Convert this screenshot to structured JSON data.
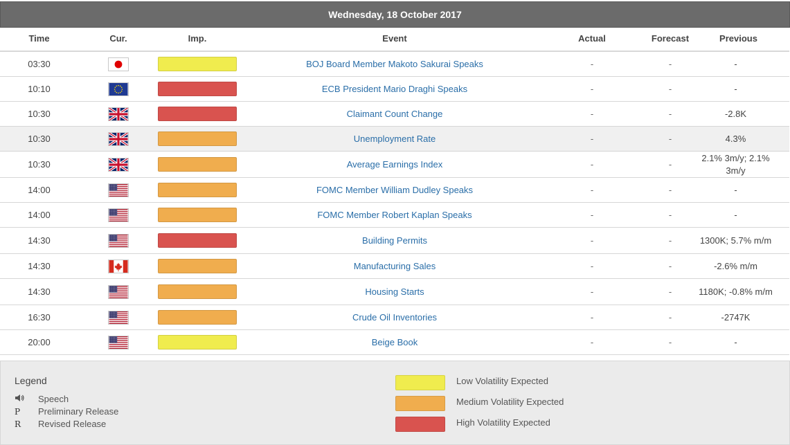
{
  "date": "Wednesday, 18 October 2017",
  "columns": {
    "time": "Time",
    "currency": "Cur.",
    "importance": "Imp.",
    "event": "Event",
    "actual": "Actual",
    "forecast": "Forecast",
    "previous": "Previous"
  },
  "rows": [
    {
      "time": "03:30",
      "flag": "jp",
      "importance": "low",
      "event": "BOJ Board Member Makoto Sakurai Speaks",
      "actual": "-",
      "forecast": "-",
      "previous": "-"
    },
    {
      "time": "10:10",
      "flag": "eu",
      "importance": "high",
      "event": "ECB President Mario Draghi Speaks",
      "actual": "-",
      "forecast": "-",
      "previous": "-"
    },
    {
      "time": "10:30",
      "flag": "gb",
      "importance": "high",
      "event": "Claimant Count Change",
      "actual": "-",
      "forecast": "-",
      "previous": "-2.8K"
    },
    {
      "time": "10:30",
      "flag": "gb",
      "importance": "medium",
      "event": "Unemployment Rate",
      "actual": "-",
      "forecast": "-",
      "previous": "4.3%"
    },
    {
      "time": "10:30",
      "flag": "gb",
      "importance": "medium",
      "event": "Average Earnings Index",
      "actual": "-",
      "forecast": "-",
      "previous": "2.1% 3m/y; 2.1% 3m/y"
    },
    {
      "time": "14:00",
      "flag": "us",
      "importance": "medium",
      "event": "FOMC Member William Dudley Speaks",
      "actual": "-",
      "forecast": "-",
      "previous": "-"
    },
    {
      "time": "14:00",
      "flag": "us",
      "importance": "medium",
      "event": "FOMC Member Robert Kaplan Speaks",
      "actual": "-",
      "forecast": "-",
      "previous": "-"
    },
    {
      "time": "14:30",
      "flag": "us",
      "importance": "high",
      "event": "Building Permits",
      "actual": "-",
      "forecast": "-",
      "previous": "1300K; 5.7% m/m"
    },
    {
      "time": "14:30",
      "flag": "ca",
      "importance": "medium",
      "event": "Manufacturing Sales",
      "actual": "-",
      "forecast": "-",
      "previous": "-2.6% m/m"
    },
    {
      "time": "14:30",
      "flag": "us",
      "importance": "medium",
      "event": "Housing Starts",
      "actual": "-",
      "forecast": "-",
      "previous": "1180K; -0.8% m/m"
    },
    {
      "time": "16:30",
      "flag": "us",
      "importance": "medium",
      "event": "Crude Oil Inventories",
      "actual": "-",
      "forecast": "-",
      "previous": "-2747K"
    },
    {
      "time": "20:00",
      "flag": "us",
      "importance": "low",
      "event": "Beige Book",
      "actual": "-",
      "forecast": "-",
      "previous": "-"
    }
  ],
  "legend": {
    "title": "Legend",
    "items": [
      {
        "symbol": "speaker-icon",
        "label": "Speech"
      },
      {
        "symbol": "P",
        "label": "Preliminary Release"
      },
      {
        "symbol": "R",
        "label": "Revised Release"
      }
    ],
    "volatility": [
      {
        "level": "low",
        "label": "Low Volatility Expected"
      },
      {
        "level": "medium",
        "label": "Medium Volatility Expected"
      },
      {
        "level": "high",
        "label": "High Volatility Expected"
      }
    ]
  },
  "colors": {
    "low": "#f0ec4e",
    "medium": "#f0ad4e",
    "high": "#d9534f",
    "link": "#2a6ea8",
    "header_bar": "#6b6b6b"
  }
}
